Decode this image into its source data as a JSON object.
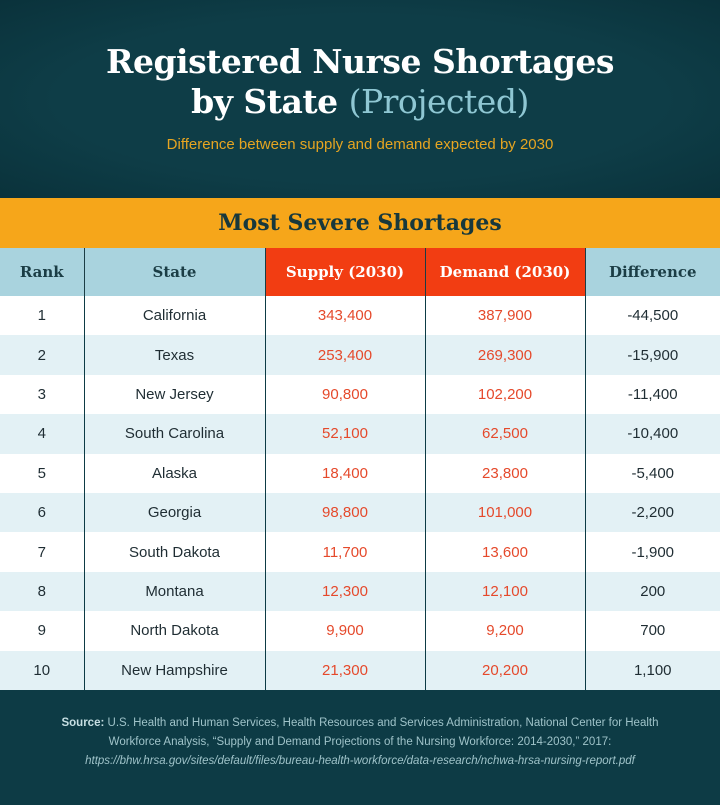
{
  "title": {
    "line1": "Registered Nurse Shortages",
    "line2": "by State",
    "highlight": "(Projected)"
  },
  "subtitle": "Difference between supply and demand expected by 2030",
  "band": "Most Severe Shortages",
  "columns": [
    "Rank",
    "State",
    "Supply (2030)",
    "Demand (2030)",
    "Difference"
  ],
  "rows": [
    [
      "1",
      "California",
      "343,400",
      "387,900",
      "-44,500"
    ],
    [
      "2",
      "Texas",
      "253,400",
      "269,300",
      "-15,900"
    ],
    [
      "3",
      "New Jersey",
      "90,800",
      "102,200",
      "-11,400"
    ],
    [
      "4",
      "South Carolina",
      "52,100",
      "62,500",
      "-10,400"
    ],
    [
      "5",
      "Alaska",
      "18,400",
      "23,800",
      "-5,400"
    ],
    [
      "6",
      "Georgia",
      "98,800",
      "101,000",
      "-2,200"
    ],
    [
      "7",
      "South Dakota",
      "11,700",
      "13,600",
      "-1,900"
    ],
    [
      "8",
      "Montana",
      "12,300",
      "12,100",
      "200"
    ],
    [
      "9",
      "North Dakota",
      "9,900",
      "9,200",
      "700"
    ],
    [
      "10",
      "New Hampshire",
      "21,300",
      "20,200",
      "1,100"
    ]
  ],
  "source": {
    "label": "Source:",
    "text": "U.S. Health and Human Services, Health Resources and Services Administration, National Center for Health Workforce Analysis, “Supply and Demand Projections of the Nursing Workforce: 2014-2030,” 2017:",
    "url": "https://bhw.hrsa.gov/sites/default/files/bureau-health-workforce/data-research/nchwa-hrsa-nursing-report.pdf"
  },
  "colors": {
    "background": "#0d3b45",
    "band": "#f6a61a",
    "header": "#a9d3de",
    "highlight_header": "#f23d12",
    "number_text": "#e5492b"
  }
}
